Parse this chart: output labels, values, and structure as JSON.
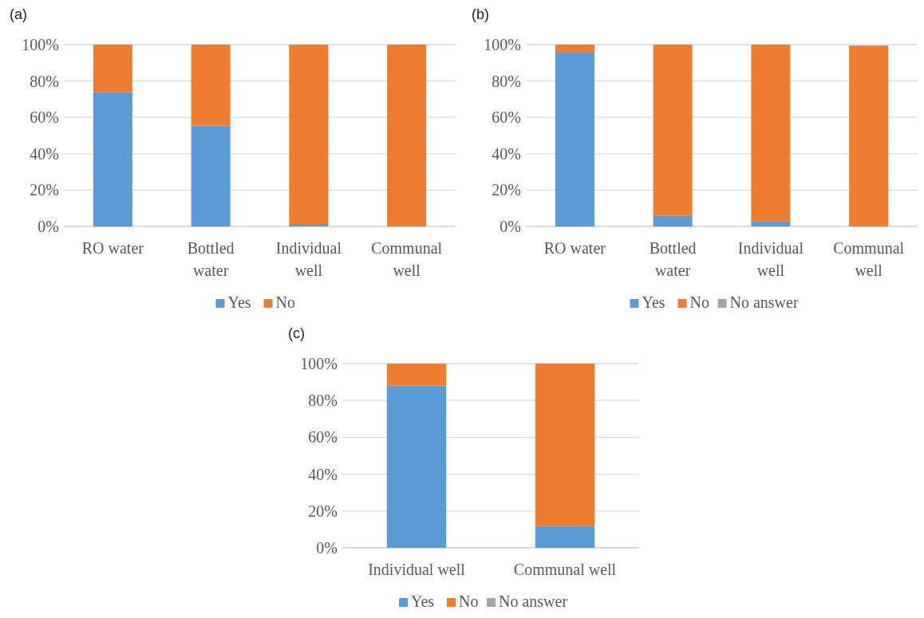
{
  "chart_data": [
    {
      "type": "bar",
      "title": "(a)",
      "stacked": true,
      "grid": "y",
      "legend": "bottom",
      "categories": [
        "RO water",
        "Bottled water",
        "Individual well",
        "Communal well"
      ],
      "ylim": [
        0,
        100
      ],
      "yticks": [
        {
          "value": 0,
          "label": "0%"
        },
        {
          "value": 20,
          "label": "20%"
        },
        {
          "value": 40,
          "label": "40%"
        },
        {
          "value": 60,
          "label": "60%"
        },
        {
          "value": 80,
          "label": "80%"
        },
        {
          "value": 100,
          "label": "100%"
        }
      ],
      "series": [
        {
          "name": "Yes",
          "color": "#5b9bd5",
          "values": [
            74,
            55.5,
            1.3,
            0.5
          ]
        },
        {
          "name": "No",
          "color": "#ed7d31",
          "values": [
            26,
            44.5,
            98.7,
            99.5
          ]
        }
      ]
    },
    {
      "type": "bar",
      "title": "(b)",
      "stacked": true,
      "grid": "y",
      "legend": "bottom",
      "categories": [
        "RO water",
        "Bottled water",
        "Individual well",
        "Communal well"
      ],
      "ylim": [
        0,
        100
      ],
      "yticks": [
        {
          "value": 0,
          "label": "0%"
        },
        {
          "value": 20,
          "label": "20%"
        },
        {
          "value": 40,
          "label": "40%"
        },
        {
          "value": 60,
          "label": "60%"
        },
        {
          "value": 80,
          "label": "80%"
        },
        {
          "value": 100,
          "label": "100%"
        }
      ],
      "series": [
        {
          "name": "Yes",
          "color": "#5b9bd5",
          "values": [
            96,
            6,
            3,
            0
          ]
        },
        {
          "name": "No",
          "color": "#ed7d31",
          "values": [
            4,
            94,
            97,
            99.5
          ]
        },
        {
          "name": "No answer",
          "color": "#a5a5a5",
          "values": [
            0,
            0,
            0,
            null
          ]
        }
      ]
    },
    {
      "type": "bar",
      "title": "(c)",
      "stacked": true,
      "grid": "y",
      "legend": "bottom",
      "categories": [
        "Individual well",
        "Communal well"
      ],
      "ylim": [
        0,
        100
      ],
      "yticks": [
        {
          "value": 0,
          "label": "0%"
        },
        {
          "value": 20,
          "label": "20%"
        },
        {
          "value": 40,
          "label": "40%"
        },
        {
          "value": 60,
          "label": "60%"
        },
        {
          "value": 80,
          "label": "80%"
        },
        {
          "value": 100,
          "label": "100%"
        }
      ],
      "series": [
        {
          "name": "Yes",
          "color": "#5b9bd5",
          "values": [
            88,
            12
          ]
        },
        {
          "name": "No",
          "color": "#ed7d31",
          "values": [
            12,
            88
          ]
        },
        {
          "name": "No answer",
          "color": "#a5a5a5",
          "values": [
            0,
            0
          ]
        }
      ]
    }
  ]
}
